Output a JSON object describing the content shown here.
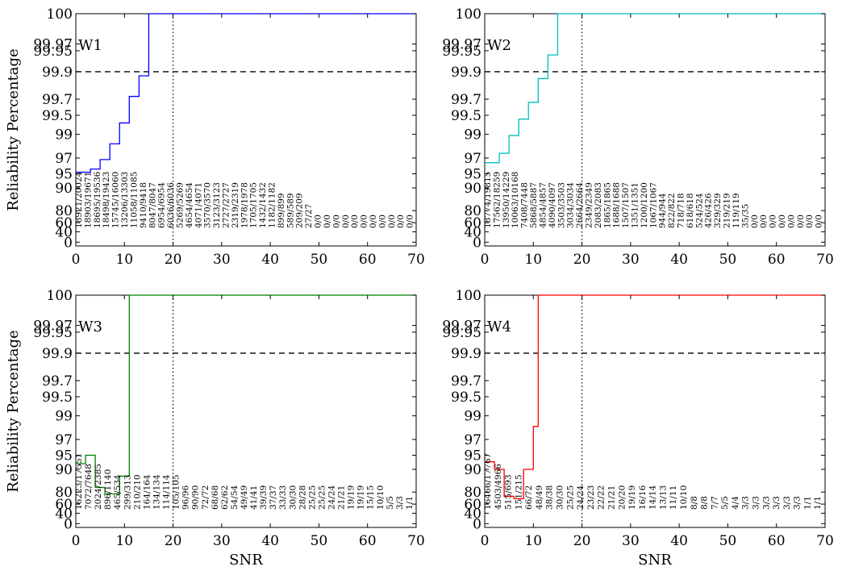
{
  "chart_data": {
    "type": "line",
    "layout": "2x2 grid",
    "ylabel": "Reliability Percentage",
    "xlabel": "SNR",
    "xlim": [
      0,
      70
    ],
    "x_ticks": [
      "0",
      "10",
      "20",
      "30",
      "40",
      "50",
      "60",
      "70"
    ],
    "y_ticks": [
      {
        "label": "0",
        "value": 0
      },
      {
        "label": "40",
        "value": 40
      },
      {
        "label": "60",
        "value": 60
      },
      {
        "label": "80",
        "value": 80
      },
      {
        "label": "90",
        "value": 90
      },
      {
        "label": "95",
        "value": 95
      },
      {
        "label": "97",
        "value": 97
      },
      {
        "label": "99",
        "value": 99
      },
      {
        "label": "99.5",
        "value": 99.5
      },
      {
        "label": "99.7",
        "value": 99.7
      },
      {
        "label": "99.9",
        "value": 99.9
      },
      {
        "label": "99.95",
        "value": 99.95
      },
      {
        "label": "99.97",
        "value": 99.97
      },
      {
        "label": "100",
        "value": 100
      }
    ],
    "reference_lines": [
      {
        "axis": "y",
        "value": 99.9,
        "style": "dashed",
        "color": "#000000"
      },
      {
        "axis": "x",
        "value": 20,
        "style": "dotted",
        "color": "#000000"
      }
    ],
    "grid": false,
    "panels": [
      {
        "label": "W1",
        "color": "#0000ff",
        "show_ylabel": true,
        "show_xlabel": false,
        "x": [
          0,
          1,
          3,
          5,
          7,
          9,
          11,
          13,
          15,
          70
        ],
        "y": [
          95.2,
          95.2,
          95.6,
          96.8,
          98.2,
          99.3,
          99.72,
          99.87,
          100,
          100
        ],
        "counts": [
          "18921/20024",
          "18903/19671",
          "18695/19536",
          "18498/19423",
          "15745/16060",
          "13206/13303",
          "11058/11085",
          "9410/9418",
          "8047/8047",
          "6954/6954",
          "6036/6036",
          "5269/5269",
          "4654/4654",
          "4071/4071",
          "3570/3570",
          "3123/3123",
          "2727/2727",
          "2319/2319",
          "1978/1978",
          "1705/1705",
          "1432/1432",
          "1182/1182",
          "899/899",
          "589/589",
          "209/209",
          "27/27",
          "0/0",
          "0/0",
          "0/0",
          "0/0",
          "0/0",
          "0/0",
          "0/0",
          "0/0",
          "0/0",
          "0/0",
          "0/0"
        ]
      },
      {
        "label": "W2",
        "color": "#00bfbf",
        "show_ylabel": false,
        "show_xlabel": false,
        "x": [
          0,
          1,
          3,
          5,
          7,
          9,
          11,
          13,
          15,
          70
        ],
        "y": [
          96.4,
          96.4,
          97.4,
          98.9,
          99.4,
          99.66,
          99.85,
          99.94,
          100,
          100
        ],
        "counts": [
          "18774/19815",
          "17562/18259",
          "13950/14229",
          "10063/10168",
          "7408/7448",
          "5868/5887",
          "4854/4857",
          "4090/4097",
          "3503/3503",
          "3034/3034",
          "2664/2664",
          "2349/2349",
          "2083/2083",
          "1865/1865",
          "1688/1688",
          "1507/1507",
          "1351/1351",
          "1200/1200",
          "1067/1067",
          "944/944",
          "822/822",
          "718/718",
          "618/618",
          "524/524",
          "426/426",
          "329/329",
          "219/219",
          "119/119",
          "35/35",
          "0/0",
          "0/0",
          "0/0",
          "0/0",
          "0/0",
          "0/0",
          "0/0",
          "0/0"
        ]
      },
      {
        "label": "W3",
        "color": "#008000",
        "show_ylabel": true,
        "show_xlabel": true,
        "x": [
          0,
          1,
          2,
          4,
          6,
          9,
          11,
          70
        ],
        "y": [
          92,
          92,
          95,
          82,
          77,
          87,
          100,
          100
        ],
        "counts": [
          "16223/17551",
          "7072/7648",
          "2024/2385",
          "896/1140",
          "465/534",
          "299/313",
          "210/210",
          "164/164",
          "134/134",
          "114/114",
          "105/105",
          "96/96",
          "90/90",
          "72/72",
          "68/68",
          "62/62",
          "54/54",
          "49/49",
          "41/41",
          "39/39",
          "37/37",
          "33/33",
          "30/30",
          "28/28",
          "25/25",
          "25/25",
          "24/24",
          "21/21",
          "19/19",
          "19/19",
          "15/15",
          "10/10",
          "5/5",
          "3/3",
          "1/1"
        ]
      },
      {
        "label": "W4",
        "color": "#ff0000",
        "show_ylabel": false,
        "show_xlabel": true,
        "x": [
          0,
          1,
          2,
          4,
          6,
          8,
          10,
          11,
          70
        ],
        "y": [
          92.7,
          92.7,
          90,
          73,
          69,
          90,
          98.1,
          100,
          100
        ],
        "counts": [
          "16466/17767",
          "4503/4966",
          "515/693",
          "151/215",
          "66/72",
          "48/49",
          "38/38",
          "30/30",
          "25/25",
          "24/24",
          "23/23",
          "22/22",
          "21/21",
          "20/20",
          "19/19",
          "16/16",
          "14/14",
          "13/13",
          "11/11",
          "10/10",
          "8/8",
          "8/8",
          "7/7",
          "5/5",
          "4/4",
          "3/3",
          "3/3",
          "3/3",
          "3/3",
          "3/3",
          "3/3",
          "1/1",
          "1/1"
        ]
      }
    ]
  }
}
